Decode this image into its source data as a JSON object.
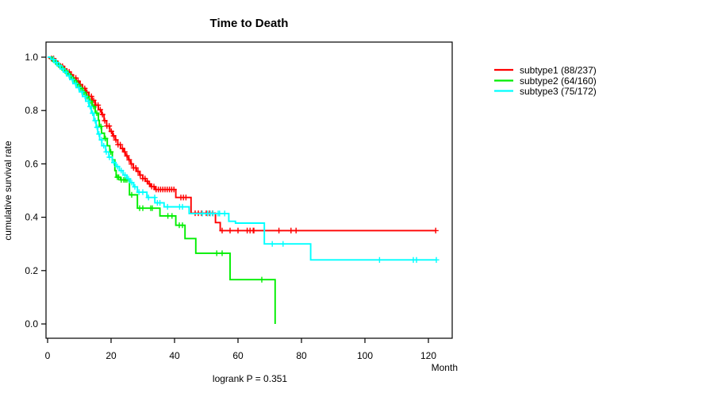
{
  "chart_data": {
    "type": "line",
    "subtype": "kaplan-meier-step",
    "title": "Time to Death",
    "xlabel": "Month",
    "ylabel": "cumulative survival rate",
    "xlim": [
      0,
      127
    ],
    "ylim": [
      0,
      1
    ],
    "xticks": [
      0,
      20,
      40,
      60,
      80,
      100,
      120
    ],
    "yticks": [
      0.0,
      0.2,
      0.4,
      0.6,
      0.8,
      1.0
    ],
    "grid": "off",
    "legend_position": "right-outside",
    "annotations": {
      "logrank": "logrank P = 0.351"
    },
    "series": [
      {
        "name": "subtype1 (88/237)",
        "color": "#ff0000",
        "points": [
          [
            0,
            1.0
          ],
          [
            1,
            0.995
          ],
          [
            2,
            0.985
          ],
          [
            3,
            0.975
          ],
          [
            4,
            0.966
          ],
          [
            5,
            0.956
          ],
          [
            6,
            0.945
          ],
          [
            7,
            0.934
          ],
          [
            8,
            0.922
          ],
          [
            9,
            0.91
          ],
          [
            10,
            0.897
          ],
          [
            11,
            0.883
          ],
          [
            12,
            0.868
          ],
          [
            13,
            0.853
          ],
          [
            14,
            0.838
          ],
          [
            15,
            0.82
          ],
          [
            16,
            0.803
          ],
          [
            17,
            0.785
          ],
          [
            17.8,
            0.762
          ],
          [
            18.6,
            0.742
          ],
          [
            19.6,
            0.722
          ],
          [
            20.5,
            0.705
          ],
          [
            21.3,
            0.69
          ],
          [
            22.1,
            0.672
          ],
          [
            23,
            0.658
          ],
          [
            24,
            0.645
          ],
          [
            24.6,
            0.63
          ],
          [
            25.4,
            0.615
          ],
          [
            26.2,
            0.6
          ],
          [
            27,
            0.585
          ],
          [
            28,
            0.572
          ],
          [
            29,
            0.558
          ],
          [
            30,
            0.545
          ],
          [
            30.8,
            0.535
          ],
          [
            31.6,
            0.525
          ],
          [
            32.4,
            0.515
          ],
          [
            33.8,
            0.504
          ],
          [
            40.4,
            0.474
          ],
          [
            45.2,
            0.415
          ],
          [
            52.9,
            0.38
          ],
          [
            54.4,
            0.35
          ],
          [
            122.3,
            0.35
          ]
        ],
        "censors": [
          1.2,
          1.9,
          2.6,
          3.3,
          4,
          4.7,
          5.4,
          6.1,
          6.8,
          7.5,
          8.2,
          8.9,
          9.6,
          10.3,
          11,
          11.7,
          12.4,
          13.1,
          13.8,
          14.5,
          15.2,
          15.9,
          16.6,
          17.3,
          18,
          18.7,
          19.4,
          20.1,
          20.8,
          21.5,
          22.2,
          22.9,
          23.6,
          24.3,
          25,
          25.7,
          26.4,
          27.1,
          27.8,
          28.5,
          29.2,
          30,
          30.7,
          31.4,
          32.1,
          32.8,
          33.5,
          34.2,
          34.9,
          35.6,
          36.3,
          37,
          37.7,
          38.4,
          39.1,
          39.8,
          42,
          42.8,
          43.6,
          46.5,
          47.5,
          48.5,
          50,
          51,
          52,
          55,
          57.5,
          60,
          62.9,
          63.8,
          64.8,
          65,
          72.9,
          76.7,
          78.3,
          122.3
        ]
      },
      {
        "name": "subtype2 (64/160)",
        "color": "#00ee00",
        "points": [
          [
            0,
            1.0
          ],
          [
            1,
            0.993
          ],
          [
            2,
            0.982
          ],
          [
            3,
            0.971
          ],
          [
            4,
            0.96
          ],
          [
            5,
            0.949
          ],
          [
            6,
            0.938
          ],
          [
            7,
            0.925
          ],
          [
            8,
            0.912
          ],
          [
            9,
            0.898
          ],
          [
            10,
            0.884
          ],
          [
            11,
            0.868
          ],
          [
            12,
            0.852
          ],
          [
            13,
            0.835
          ],
          [
            14,
            0.815
          ],
          [
            15,
            0.79
          ],
          [
            16,
            0.763
          ],
          [
            16.3,
            0.74
          ],
          [
            17,
            0.715
          ],
          [
            17.9,
            0.695
          ],
          [
            18.8,
            0.668
          ],
          [
            19.6,
            0.645
          ],
          [
            20.4,
            0.615
          ],
          [
            21.2,
            0.575
          ],
          [
            21.6,
            0.55
          ],
          [
            23,
            0.54
          ],
          [
            25.8,
            0.484
          ],
          [
            28.3,
            0.434
          ],
          [
            35.4,
            0.405
          ],
          [
            40.4,
            0.37
          ],
          [
            43.3,
            0.32
          ],
          [
            46.7,
            0.265
          ],
          [
            57.5,
            0.166
          ],
          [
            71.7,
            0.0
          ]
        ],
        "censors": [
          1.5,
          2.5,
          3.5,
          4.5,
          5.5,
          6.5,
          7.5,
          8.5,
          9.5,
          10.5,
          11.5,
          12.5,
          13.5,
          14.5,
          15.5,
          16.8,
          18.2,
          19.9,
          22,
          22.4,
          23.2,
          24,
          24.5,
          25,
          26.5,
          29,
          30,
          32.5,
          33,
          37.9,
          39.2,
          41.5,
          42.5,
          53.3,
          55,
          67.5
        ]
      },
      {
        "name": "subtype3 (75/172)",
        "color": "#00ffff",
        "points": [
          [
            0,
            1.0
          ],
          [
            1,
            0.992
          ],
          [
            2,
            0.98
          ],
          [
            3,
            0.968
          ],
          [
            4,
            0.956
          ],
          [
            5,
            0.944
          ],
          [
            6,
            0.93
          ],
          [
            7,
            0.916
          ],
          [
            8,
            0.901
          ],
          [
            9,
            0.886
          ],
          [
            10,
            0.87
          ],
          [
            11,
            0.853
          ],
          [
            12,
            0.835
          ],
          [
            13,
            0.815
          ],
          [
            13.8,
            0.79
          ],
          [
            14.6,
            0.762
          ],
          [
            15.3,
            0.737
          ],
          [
            15.8,
            0.712
          ],
          [
            16.4,
            0.69
          ],
          [
            17.1,
            0.668
          ],
          [
            18.3,
            0.645
          ],
          [
            19.3,
            0.625
          ],
          [
            20.4,
            0.605
          ],
          [
            21.5,
            0.59
          ],
          [
            22.6,
            0.575
          ],
          [
            23.8,
            0.558
          ],
          [
            25,
            0.544
          ],
          [
            26,
            0.53
          ],
          [
            27.1,
            0.514
          ],
          [
            28.3,
            0.494
          ],
          [
            31.3,
            0.474
          ],
          [
            33.8,
            0.454
          ],
          [
            36.7,
            0.439
          ],
          [
            44.6,
            0.414
          ],
          [
            57.1,
            0.385
          ],
          [
            59.2,
            0.378
          ],
          [
            68.3,
            0.3
          ],
          [
            82.9,
            0.24
          ],
          [
            122.5,
            0.24
          ]
        ],
        "censors": [
          1.8,
          2.8,
          3.8,
          4.8,
          5.8,
          6.8,
          7.8,
          8.8,
          9.8,
          10.8,
          11.8,
          12.8,
          13.4,
          14.2,
          15,
          15.6,
          16.2,
          17,
          17.7,
          18.5,
          19.5,
          20.9,
          22,
          23.2,
          24.4,
          25.5,
          26.5,
          27.5,
          28.8,
          30,
          31.8,
          33.75,
          34.6,
          35.4,
          37.8,
          41.6,
          42.5,
          48.75,
          50.4,
          51.25,
          52.1,
          53.75,
          54.2,
          55.8,
          70.8,
          74.2,
          104.6,
          115.25,
          116.25,
          122.5
        ]
      }
    ]
  }
}
